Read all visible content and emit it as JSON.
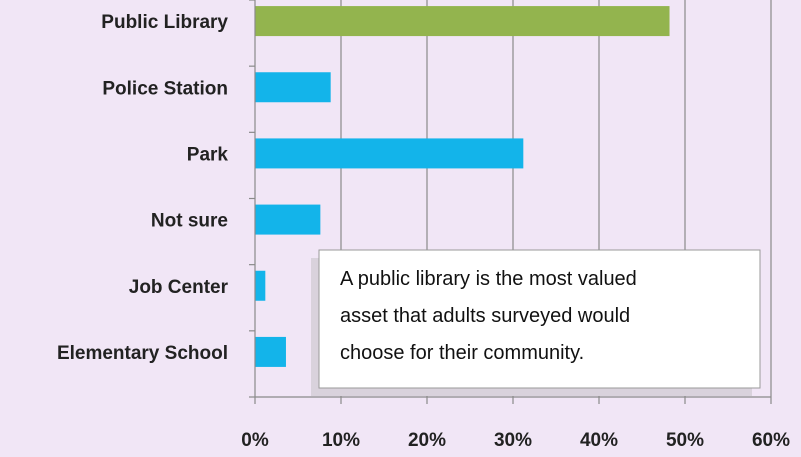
{
  "chart_data": {
    "type": "bar",
    "orientation": "horizontal",
    "categories": [
      "Public Library",
      "Police Station",
      "Park",
      "Not sure",
      "Job Center",
      "Elementary School"
    ],
    "values": [
      48.2,
      8.8,
      31.2,
      7.6,
      1.2,
      3.6
    ],
    "highlight_category": "Public Library",
    "xlim": [
      0,
      60
    ],
    "x_ticks": [
      "0%",
      "10%",
      "20%",
      "30%",
      "40%",
      "50%",
      "60%"
    ],
    "grid": "vertical",
    "colors": {
      "highlight": "#93b44e",
      "default": "#13b4ea",
      "background": "#f1e6f6"
    },
    "annotation": [
      "A public library is the most valued",
      "asset that adults surveyed would",
      "choose for their community."
    ]
  }
}
